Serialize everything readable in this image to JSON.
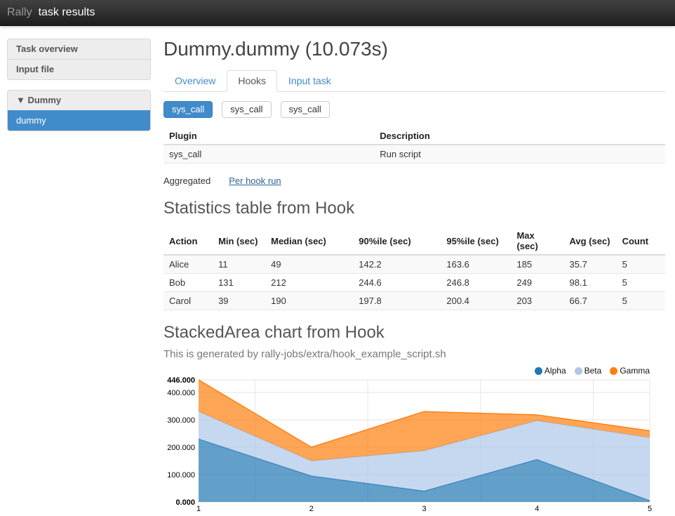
{
  "navbar": {
    "brand": "Rally",
    "title": "task results"
  },
  "sidebar": {
    "nav_items": [
      {
        "label": "Task overview"
      },
      {
        "label": "Input file"
      }
    ],
    "scenario_group": {
      "arrow": "▼",
      "header": "Dummy",
      "items": [
        {
          "label": "dummy",
          "active": true
        }
      ]
    }
  },
  "main": {
    "title": "Dummy.dummy (10.073s)",
    "tabs": [
      {
        "label": "Overview",
        "active": false
      },
      {
        "label": "Hooks",
        "active": true
      },
      {
        "label": "Input task",
        "active": false
      }
    ],
    "hook_buttons": [
      {
        "label": "sys_call",
        "active": true
      },
      {
        "label": "sys_call",
        "active": false
      },
      {
        "label": "sys_call",
        "active": false
      }
    ],
    "plugin_table": {
      "headers": [
        "Plugin",
        "Description"
      ],
      "col_widths": [
        "42%",
        "58%"
      ],
      "rows": [
        [
          "sys_call",
          "Run script"
        ]
      ]
    },
    "view_toggle": {
      "aggregated_label": "Aggregated",
      "per_hook_link": "Per hook run"
    },
    "stats_section": {
      "heading": "Statistics table from Hook",
      "table": {
        "headers": [
          "Action",
          "Min (sec)",
          "Median (sec)",
          "90%ile (sec)",
          "95%ile (sec)",
          "Max (sec)",
          "Avg (sec)",
          "Count"
        ],
        "col_widths": [
          "9.8%",
          "10.5%",
          "17.5%",
          "17.5%",
          "14%",
          "10.5%",
          "10.5%",
          "9.7%"
        ],
        "rows": [
          [
            "Alice",
            "11",
            "49",
            "142.2",
            "163.6",
            "185",
            "35.7",
            "5"
          ],
          [
            "Bob",
            "131",
            "212",
            "244.6",
            "246.8",
            "249",
            "98.1",
            "5"
          ],
          [
            "Carol",
            "39",
            "190",
            "197.8",
            "200.4",
            "203",
            "66.7",
            "5"
          ]
        ]
      }
    },
    "chart_section": {
      "heading": "StackedArea chart from Hook",
      "subtitle": "This is generated by rally-jobs/extra/hook_example_script.sh"
    }
  },
  "chart_data": {
    "type": "area",
    "stacked": true,
    "x": [
      1,
      2,
      3,
      4,
      5
    ],
    "x_tick_labels": [
      "1",
      "2",
      "3",
      "4",
      "5"
    ],
    "series": [
      {
        "name": "Alpha",
        "color": "#1f77b4",
        "values": [
          230,
          95,
          40,
          155,
          5
        ]
      },
      {
        "name": "Beta",
        "color": "#aec7e8",
        "values": [
          100,
          55,
          147,
          142,
          230
        ]
      },
      {
        "name": "Gamma",
        "color": "#ff7f0e",
        "values": [
          116,
          50,
          143,
          21,
          25
        ]
      }
    ],
    "fill_opacity": 0.7,
    "ylim": [
      0,
      446
    ],
    "y_ticks": [
      {
        "value": 0,
        "label": "0.000",
        "bold": true
      },
      {
        "value": 100,
        "label": "100.000",
        "bold": false
      },
      {
        "value": 200,
        "label": "200.000",
        "bold": false
      },
      {
        "value": 300,
        "label": "300.000",
        "bold": false
      },
      {
        "value": 400,
        "label": "400.000",
        "bold": false
      },
      {
        "value": 446,
        "label": "446.000",
        "bold": true
      }
    ],
    "y_gridlines": [
      0,
      100,
      200,
      300,
      400,
      446
    ],
    "x_gridlines": [
      1.5,
      2.5,
      3.5,
      4.5,
      5
    ],
    "grid": true,
    "legend_position": "top-right",
    "grid_color": "#e5e5e5",
    "axis_text_color": "#000000"
  },
  "colors": {
    "accent": "#428bca",
    "link": "#2a6496",
    "heading": "#555555"
  }
}
